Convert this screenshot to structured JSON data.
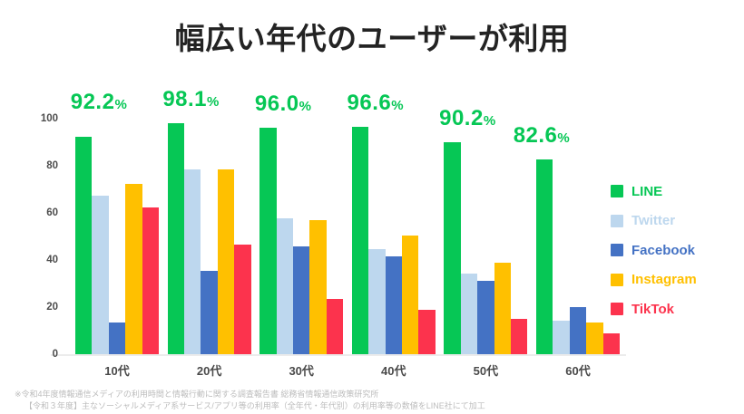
{
  "title": "幅広い年代のユーザーが利用",
  "chart_data": {
    "type": "bar",
    "title": "幅広い年代のユーザーが利用",
    "categories": [
      "10代",
      "20代",
      "30代",
      "40代",
      "50代",
      "60代"
    ],
    "series": [
      {
        "name": "LINE",
        "color": "#06C755",
        "values": [
          92.2,
          98.1,
          96.0,
          96.6,
          90.2,
          82.6
        ]
      },
      {
        "name": "Twitter",
        "color": "#BDD7EE",
        "values": [
          67.4,
          78.6,
          57.9,
          44.8,
          34.3,
          14.1
        ]
      },
      {
        "name": "Facebook",
        "color": "#4472C4",
        "values": [
          13.5,
          35.3,
          45.7,
          41.4,
          31.0,
          19.9
        ]
      },
      {
        "name": "Instagram",
        "color": "#FFC000",
        "values": [
          72.3,
          78.6,
          57.1,
          50.3,
          38.7,
          13.4
        ]
      },
      {
        "name": "TikTok",
        "color": "#FC334D",
        "values": [
          62.4,
          46.5,
          23.5,
          18.8,
          15.2,
          8.7
        ]
      }
    ],
    "highlight_series": "LINE",
    "highlight_labels": [
      "92.2%",
      "98.1%",
      "96.0%",
      "96.6%",
      "90.2%",
      "82.6%"
    ],
    "highlight_label_color": "#06C755",
    "y_ticks": [
      0,
      20,
      40,
      60,
      80,
      100
    ],
    "ylim": [
      0,
      100
    ],
    "xlabel": "",
    "ylabel": "",
    "grid": false,
    "legend_position": "right"
  },
  "footnotes": {
    "line1": "※令和4年度情報通信メディアの利用時間と情報行動に関する調査報告書 総務省情報通信政策研究所",
    "line2": "【令和３年度】主なソーシャルメディア系サービス/アプリ等の利用率（全年代・年代別）の利用率等の数値をLINE社にて加工"
  }
}
